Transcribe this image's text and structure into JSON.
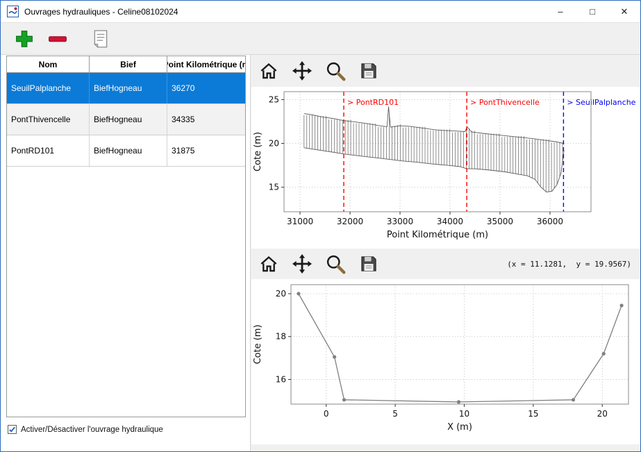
{
  "window": {
    "title": "Ouvrages hydrauliques - Celine08102024",
    "controls": {
      "minimize": "–",
      "maximize": "□",
      "close": "✕"
    }
  },
  "app_toolbar": {
    "buttons": [
      {
        "name": "add",
        "icon": "green-plus"
      },
      {
        "name": "remove",
        "icon": "red-minus"
      },
      {
        "name": "edit",
        "icon": "document-lines"
      }
    ]
  },
  "table": {
    "columns": [
      "Nom",
      "Bief",
      "Point Kilométrique (m"
    ],
    "rows": [
      {
        "nom": "SeuilPalplanche",
        "bief": "BiefHogneau",
        "pk": "36270",
        "selected": true
      },
      {
        "nom": "PontThivencelle",
        "bief": "BiefHogneau",
        "pk": "34335",
        "selected": false
      },
      {
        "nom": "PontRD101",
        "bief": "BiefHogneau",
        "pk": "31875",
        "selected": false
      }
    ]
  },
  "checkbox": {
    "label": "Activer/Désactiver l'ouvrage hydraulique",
    "checked": true
  },
  "plot_toolbar": {
    "buttons": [
      {
        "name": "home",
        "icon": "house"
      },
      {
        "name": "pan",
        "icon": "move-arrows"
      },
      {
        "name": "zoom",
        "icon": "magnifier"
      },
      {
        "name": "save",
        "icon": "floppy-disk"
      }
    ],
    "status_text": "(x = 11.1281,  y = 19.9567)"
  },
  "chart_data": [
    {
      "type": "line",
      "title": "",
      "xlabel": "Point Kilométrique (m)",
      "ylabel": "Cote (m)",
      "xlim": [
        30680,
        36820
      ],
      "ylim": [
        12.2,
        25.9
      ],
      "xticks": [
        31000,
        32000,
        33000,
        34000,
        35000,
        36000
      ],
      "yticks": [
        15,
        20,
        25
      ],
      "grid": true,
      "hatch_step": 55,
      "vline_label_y": 24.4,
      "series": [
        {
          "name": "top-profile",
          "color": "#5a5a5a",
          "width": 0.9,
          "markers": false,
          "values": [
            [
              31080,
              23.4
            ],
            [
              31250,
              23.25
            ],
            [
              31450,
              23.0
            ],
            [
              31650,
              22.85
            ],
            [
              31875,
              22.6
            ],
            [
              32100,
              22.45
            ],
            [
              32350,
              22.25
            ],
            [
              32600,
              22.0
            ],
            [
              32740,
              21.9
            ],
            [
              32770,
              24.2
            ],
            [
              32810,
              21.85
            ],
            [
              33000,
              22.0
            ],
            [
              33200,
              21.95
            ],
            [
              33450,
              21.75
            ],
            [
              33700,
              21.55
            ],
            [
              33950,
              21.45
            ],
            [
              34150,
              21.4
            ],
            [
              34300,
              21.35
            ],
            [
              34340,
              21.9
            ],
            [
              34430,
              21.3
            ],
            [
              34650,
              21.15
            ],
            [
              34900,
              21.0
            ],
            [
              35150,
              20.85
            ],
            [
              35400,
              20.7
            ],
            [
              35650,
              20.55
            ],
            [
              35900,
              20.35
            ],
            [
              36100,
              20.2
            ],
            [
              36280,
              20.0
            ]
          ]
        },
        {
          "name": "bed-profile",
          "color": "#5a5a5a",
          "width": 0.9,
          "markers": false,
          "values": [
            [
              31080,
              19.5
            ],
            [
              31300,
              19.3
            ],
            [
              31600,
              19.05
            ],
            [
              31875,
              18.8
            ],
            [
              32150,
              18.6
            ],
            [
              32450,
              18.4
            ],
            [
              32750,
              18.2
            ],
            [
              33050,
              18.0
            ],
            [
              33350,
              17.85
            ],
            [
              33650,
              17.65
            ],
            [
              33950,
              17.5
            ],
            [
              34200,
              17.35
            ],
            [
              34335,
              17.1
            ],
            [
              34500,
              17.1
            ],
            [
              34800,
              16.95
            ],
            [
              35100,
              16.75
            ],
            [
              35350,
              16.5
            ],
            [
              35550,
              16.3
            ],
            [
              35700,
              15.9
            ],
            [
              35820,
              15.0
            ],
            [
              35930,
              14.45
            ],
            [
              36040,
              14.55
            ],
            [
              36140,
              15.3
            ],
            [
              36220,
              16.6
            ],
            [
              36280,
              19.2
            ]
          ]
        }
      ],
      "vlines": [
        {
          "x": 31875,
          "color": "#ff0000",
          "label": "> PontRD101"
        },
        {
          "x": 34335,
          "color": "#ff0000",
          "label": "> PontThivencelle"
        },
        {
          "x": 36270,
          "color": "#0000ee",
          "label": "> SeuilPalplanche"
        }
      ]
    },
    {
      "type": "line",
      "title": "",
      "xlabel": "X (m)",
      "ylabel": "Cote (m)",
      "xlim": [
        -2.55,
        21.9
      ],
      "ylim": [
        14.85,
        20.42
      ],
      "xticks": [
        0,
        5,
        10,
        15,
        20
      ],
      "yticks": [
        16,
        18,
        20
      ],
      "grid": true,
      "series": [
        {
          "name": "cross-section",
          "color": "#808080",
          "width": 1.3,
          "markers": true,
          "values": [
            [
              -2.0,
              20.0
            ],
            [
              0.6,
              17.05
            ],
            [
              1.3,
              15.05
            ],
            [
              9.6,
              14.95
            ],
            [
              17.9,
              15.05
            ],
            [
              20.1,
              17.2
            ],
            [
              21.4,
              19.45
            ]
          ]
        }
      ],
      "vlines": []
    }
  ]
}
